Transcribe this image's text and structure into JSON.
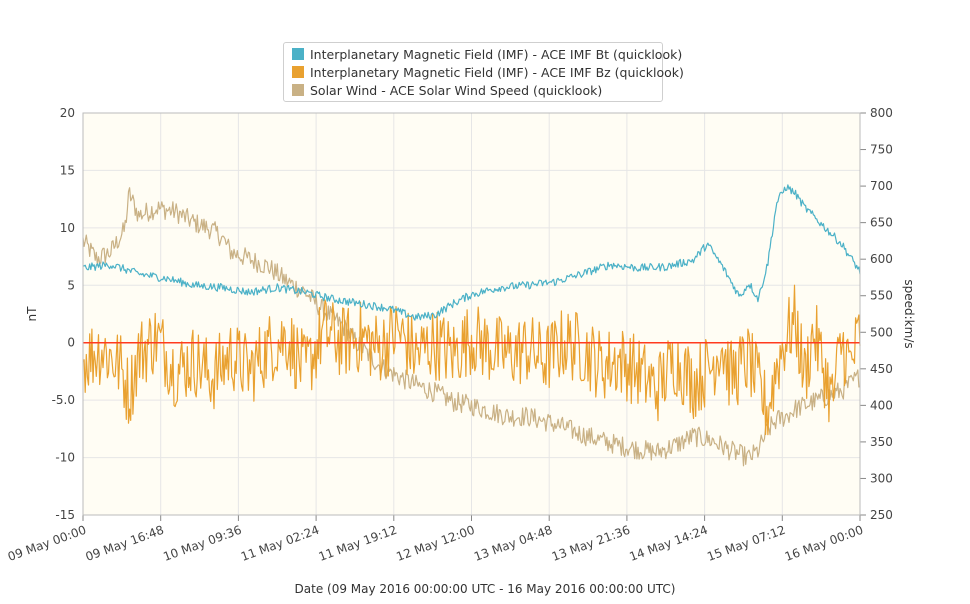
{
  "chart_data": {
    "type": "line",
    "xlabel": "Date (09 May 2016 00:00:00 UTC - 16 May 2016 00:00:00 UTC)",
    "ylabel_left": "nT",
    "ylabel_right": "speed:km/s",
    "x_ticks": [
      "09 May 00:00",
      "09 May 16:48",
      "10 May 09:36",
      "11 May 02:24",
      "11 May 19:12",
      "12 May 12:00",
      "13 May 04:48",
      "13 May 21:36",
      "14 May 14:24",
      "15 May 07:12",
      "16 May 00:00"
    ],
    "x_range_hours": [
      0,
      168
    ],
    "y_left_range": [
      -15,
      20
    ],
    "y_left_ticks": [
      "-15",
      "-10",
      "-5.0",
      "0",
      "5",
      "10",
      "15",
      "20"
    ],
    "y_right_range": [
      250,
      800
    ],
    "y_right_ticks": [
      "250",
      "300",
      "350",
      "400",
      "450",
      "500",
      "550",
      "600",
      "650",
      "700",
      "750",
      "800"
    ],
    "reference_line": {
      "axis": "left",
      "value": 0,
      "color": "#ff3b1f"
    },
    "grid": true,
    "legend_position": "top-center",
    "plot_background": "#fffdf4",
    "series": [
      {
        "name": "Interplanetary Magnetic Field (IMF) - ACE IMF Bt (quicklook)",
        "axis": "left",
        "unit": "nT",
        "color": "#4bb1c7",
        "x": [
          0,
          6,
          12,
          18,
          24,
          30,
          36,
          42,
          48,
          54,
          60,
          66,
          72,
          76,
          80,
          84,
          90,
          96,
          102,
          108,
          114,
          120,
          126,
          132,
          135,
          138,
          142,
          144,
          146,
          148,
          150,
          152,
          154,
          156,
          160,
          164,
          168
        ],
        "y": [
          6.5,
          6.8,
          6.0,
          5.6,
          5.0,
          4.8,
          4.4,
          4.8,
          4.4,
          3.8,
          3.4,
          3.0,
          2.2,
          2.4,
          3.4,
          4.2,
          4.8,
          5.0,
          5.3,
          6.0,
          6.8,
          6.5,
          6.6,
          7.2,
          8.6,
          6.8,
          4.0,
          5.2,
          3.8,
          6.8,
          12.2,
          13.6,
          13.0,
          11.8,
          10.2,
          8.6,
          6.2
        ]
      },
      {
        "name": "Interplanetary Magnetic Field (IMF) - ACE IMF Bz (quicklook)",
        "axis": "left",
        "unit": "nT",
        "color": "#e9a130",
        "x": [
          0,
          4,
          8,
          10,
          12,
          16,
          20,
          24,
          28,
          32,
          36,
          40,
          44,
          48,
          52,
          56,
          60,
          64,
          68,
          72,
          76,
          80,
          84,
          88,
          92,
          96,
          100,
          104,
          108,
          112,
          116,
          120,
          124,
          128,
          132,
          136,
          138,
          140,
          144,
          148,
          150,
          152,
          154,
          156,
          158,
          160,
          162,
          164,
          166,
          168
        ],
        "y": [
          -1.5,
          -0.5,
          -2.0,
          -4.5,
          -1.0,
          0.5,
          -2.5,
          -1.5,
          -3.0,
          -1.0,
          -2.5,
          -0.5,
          0.5,
          -2.5,
          1.0,
          0.0,
          0.5,
          -0.5,
          1.0,
          -1.0,
          0.0,
          -1.0,
          0.5,
          -0.5,
          -1.0,
          -0.5,
          -1.5,
          0.0,
          -0.5,
          -2.0,
          -1.5,
          -2.5,
          -4.0,
          -1.5,
          -3.5,
          -2.0,
          0.0,
          -3.0,
          -1.5,
          -6.0,
          -2.0,
          0.5,
          2.0,
          -3.0,
          1.0,
          -2.0,
          -5.0,
          0.0,
          -2.0,
          1.0
        ]
      },
      {
        "name": "Solar Wind - ACE Solar Wind Speed (quicklook)",
        "axis": "right",
        "unit": "km/s",
        "color": "#c9b185",
        "x": [
          0,
          3,
          6,
          9,
          10,
          12,
          16,
          20,
          24,
          28,
          30,
          32,
          36,
          40,
          44,
          48,
          52,
          56,
          60,
          64,
          68,
          72,
          76,
          80,
          84,
          88,
          92,
          96,
          100,
          104,
          108,
          112,
          116,
          120,
          124,
          128,
          132,
          136,
          140,
          144,
          146,
          148,
          150,
          152,
          154,
          156,
          160,
          164,
          168
        ],
        "y": [
          625,
          600,
          610,
          640,
          690,
          660,
          670,
          665,
          650,
          640,
          630,
          610,
          600,
          590,
          570,
          555,
          530,
          510,
          480,
          455,
          440,
          428,
          418,
          405,
          400,
          392,
          385,
          385,
          378,
          370,
          360,
          352,
          345,
          340,
          336,
          345,
          358,
          352,
          338,
          328,
          338,
          365,
          380,
          385,
          395,
          400,
          410,
          420,
          440
        ]
      }
    ]
  }
}
